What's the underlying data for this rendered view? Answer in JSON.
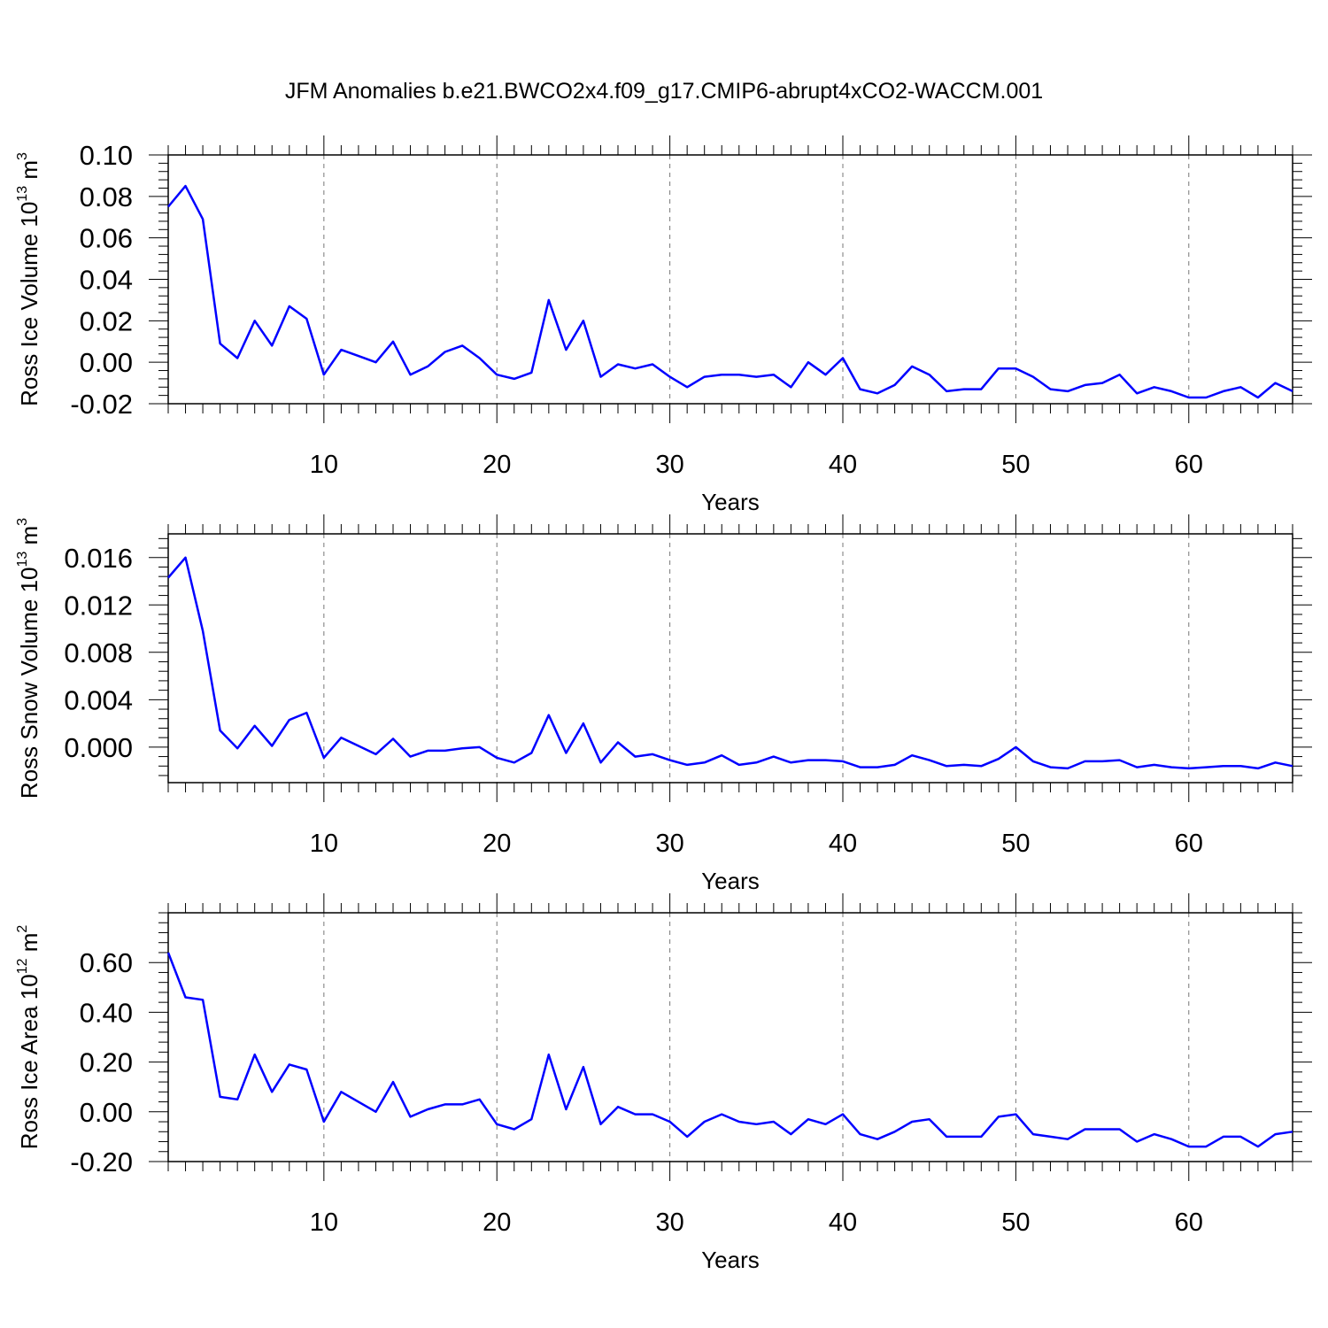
{
  "figure": {
    "title": "JFM Anomalies b.e21.BWCO2x4.f09_g17.CMIP6-abrupt4xCO2-WACCM.001",
    "line_color": "#0000ff"
  },
  "chart_data": [
    {
      "type": "line",
      "xlabel": "Years",
      "ylabel": {
        "text": "Ross Ice Volume 10",
        "sup": "13",
        "unit": " m",
        "unit_sup": "3"
      },
      "xlim": [
        1,
        66
      ],
      "ylim": [
        -0.02,
        0.1
      ],
      "x_ticks": [
        10,
        20,
        30,
        40,
        50,
        60
      ],
      "y_ticks": [
        -0.02,
        0.0,
        0.02,
        0.04,
        0.06,
        0.08,
        0.1
      ],
      "y_tick_labels": [
        "-0.02",
        "0.00",
        "0.02",
        "0.04",
        "0.06",
        "0.08",
        "0.10"
      ],
      "grid": "vertical dashed at major x ticks",
      "series": [
        {
          "x_start": 1,
          "values": [
            0.075,
            0.085,
            0.069,
            0.009,
            0.002,
            0.02,
            0.008,
            0.027,
            0.021,
            -0.006,
            0.006,
            0.003,
            0.0,
            0.01,
            -0.006,
            -0.002,
            0.005,
            0.008,
            0.002,
            -0.006,
            -0.008,
            -0.005,
            0.03,
            0.006,
            0.02,
            -0.007,
            -0.001,
            -0.003,
            -0.001,
            -0.007,
            -0.012,
            -0.007,
            -0.006,
            -0.006,
            -0.007,
            -0.006,
            -0.012,
            0.0,
            -0.006,
            0.002,
            -0.013,
            -0.015,
            -0.011,
            -0.002,
            -0.006,
            -0.014,
            -0.013,
            -0.013,
            -0.003,
            -0.003,
            -0.007,
            -0.013,
            -0.014,
            -0.011,
            -0.01,
            -0.006,
            -0.015,
            -0.012,
            -0.014,
            -0.017,
            -0.017,
            -0.014,
            -0.012,
            -0.017,
            -0.01,
            -0.014
          ]
        }
      ]
    },
    {
      "type": "line",
      "xlabel": "Years",
      "ylabel": {
        "text": "Ross Snow Volume 10",
        "sup": "13",
        "unit": " m",
        "unit_sup": "3"
      },
      "xlim": [
        1,
        66
      ],
      "ylim": [
        -0.003,
        0.018
      ],
      "x_ticks": [
        10,
        20,
        30,
        40,
        50,
        60
      ],
      "y_ticks": [
        0.0,
        0.004,
        0.008,
        0.012,
        0.016
      ],
      "y_tick_labels": [
        "0.000",
        "0.004",
        "0.008",
        "0.012",
        "0.016"
      ],
      "grid": "vertical dashed at major x ticks",
      "series": [
        {
          "x_start": 1,
          "values": [
            0.0143,
            0.016,
            0.0098,
            0.0014,
            -0.0001,
            0.0018,
            0.0001,
            0.0023,
            0.0029,
            -0.0009,
            0.0008,
            0.0001,
            -0.0006,
            0.0007,
            -0.0008,
            -0.0003,
            -0.0003,
            -0.0001,
            0.0,
            -0.0009,
            -0.0013,
            -0.0005,
            0.0027,
            -0.0005,
            0.002,
            -0.0013,
            0.0004,
            -0.0008,
            -0.0006,
            -0.0011,
            -0.0015,
            -0.0013,
            -0.0007,
            -0.0015,
            -0.0013,
            -0.0008,
            -0.0013,
            -0.0011,
            -0.0011,
            -0.0012,
            -0.0017,
            -0.0017,
            -0.0015,
            -0.0007,
            -0.0011,
            -0.0016,
            -0.0015,
            -0.0016,
            -0.001,
            0.0,
            -0.0012,
            -0.0017,
            -0.0018,
            -0.0012,
            -0.0012,
            -0.0011,
            -0.0017,
            -0.0015,
            -0.0017,
            -0.0018,
            -0.0017,
            -0.0016,
            -0.0016,
            -0.0018,
            -0.0013,
            -0.0016
          ]
        }
      ]
    },
    {
      "type": "line",
      "xlabel": "Years",
      "ylabel": {
        "text": "Ross Ice Area 10",
        "sup": "12",
        "unit": " m",
        "unit_sup": "2"
      },
      "xlim": [
        1,
        66
      ],
      "ylim": [
        -0.2,
        0.8
      ],
      "x_ticks": [
        10,
        20,
        30,
        40,
        50,
        60
      ],
      "y_ticks": [
        -0.2,
        0.0,
        0.2,
        0.4,
        0.6
      ],
      "y_tick_labels": [
        "-0.20",
        "0.00",
        "0.20",
        "0.40",
        "0.60"
      ],
      "grid": "vertical dashed at major x ticks",
      "series": [
        {
          "x_start": 1,
          "values": [
            0.64,
            0.46,
            0.45,
            0.06,
            0.05,
            0.23,
            0.08,
            0.19,
            0.17,
            -0.04,
            0.08,
            0.04,
            0.0,
            0.12,
            -0.02,
            0.01,
            0.03,
            0.03,
            0.05,
            -0.05,
            -0.07,
            -0.03,
            0.23,
            0.01,
            0.18,
            -0.05,
            0.02,
            -0.01,
            -0.01,
            -0.04,
            -0.1,
            -0.04,
            -0.01,
            -0.04,
            -0.05,
            -0.04,
            -0.09,
            -0.03,
            -0.05,
            -0.01,
            -0.09,
            -0.11,
            -0.08,
            -0.04,
            -0.03,
            -0.1,
            -0.1,
            -0.1,
            -0.02,
            -0.01,
            -0.09,
            -0.1,
            -0.11,
            -0.07,
            -0.07,
            -0.07,
            -0.12,
            -0.09,
            -0.11,
            -0.14,
            -0.14,
            -0.1,
            -0.1,
            -0.14,
            -0.09,
            -0.08
          ]
        }
      ]
    }
  ]
}
